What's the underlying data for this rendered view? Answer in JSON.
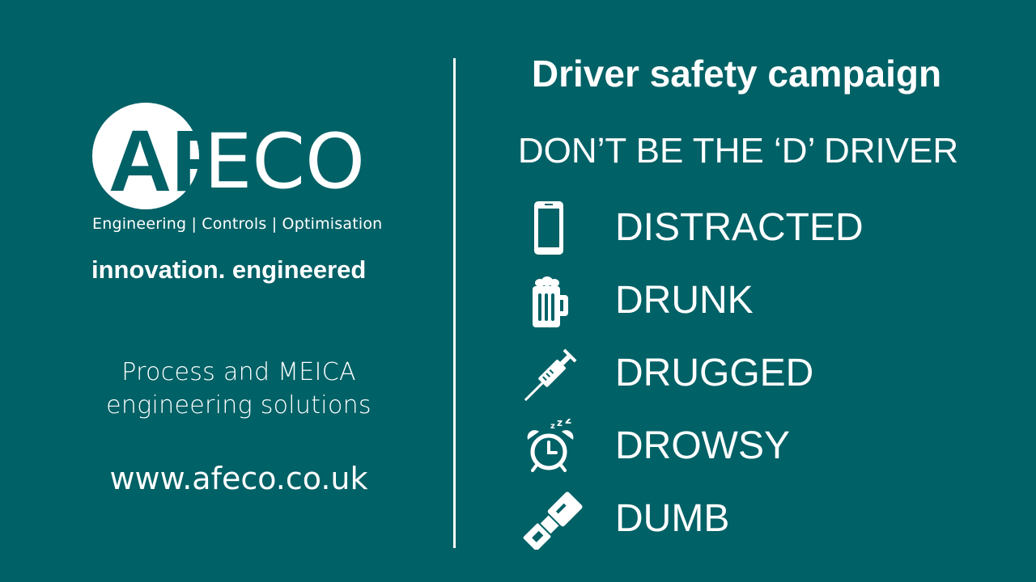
{
  "brand": {
    "logo_text": "AFECO",
    "tagline": "Engineering | Controls | Optimisation",
    "slogan": "innovation. engineered",
    "services_line1": "Process and MEICA",
    "services_line2": "engineering solutions",
    "website": "www.afeco.co.uk"
  },
  "campaign": {
    "title": "Driver safety campaign",
    "subtitle": "DON’T BE THE ‘D’ DRIVER",
    "items": [
      {
        "icon": "smartphone-icon",
        "label": "DISTRACTED"
      },
      {
        "icon": "beer-mug-icon",
        "label": "DRUNK"
      },
      {
        "icon": "syringe-icon",
        "label": "DRUGGED"
      },
      {
        "icon": "alarm-clock-icon",
        "label": "DROWSY"
      },
      {
        "icon": "seatbelt-icon",
        "label": "DUMB"
      }
    ]
  },
  "colors": {
    "background": "#006166",
    "foreground": "#ffffff"
  }
}
